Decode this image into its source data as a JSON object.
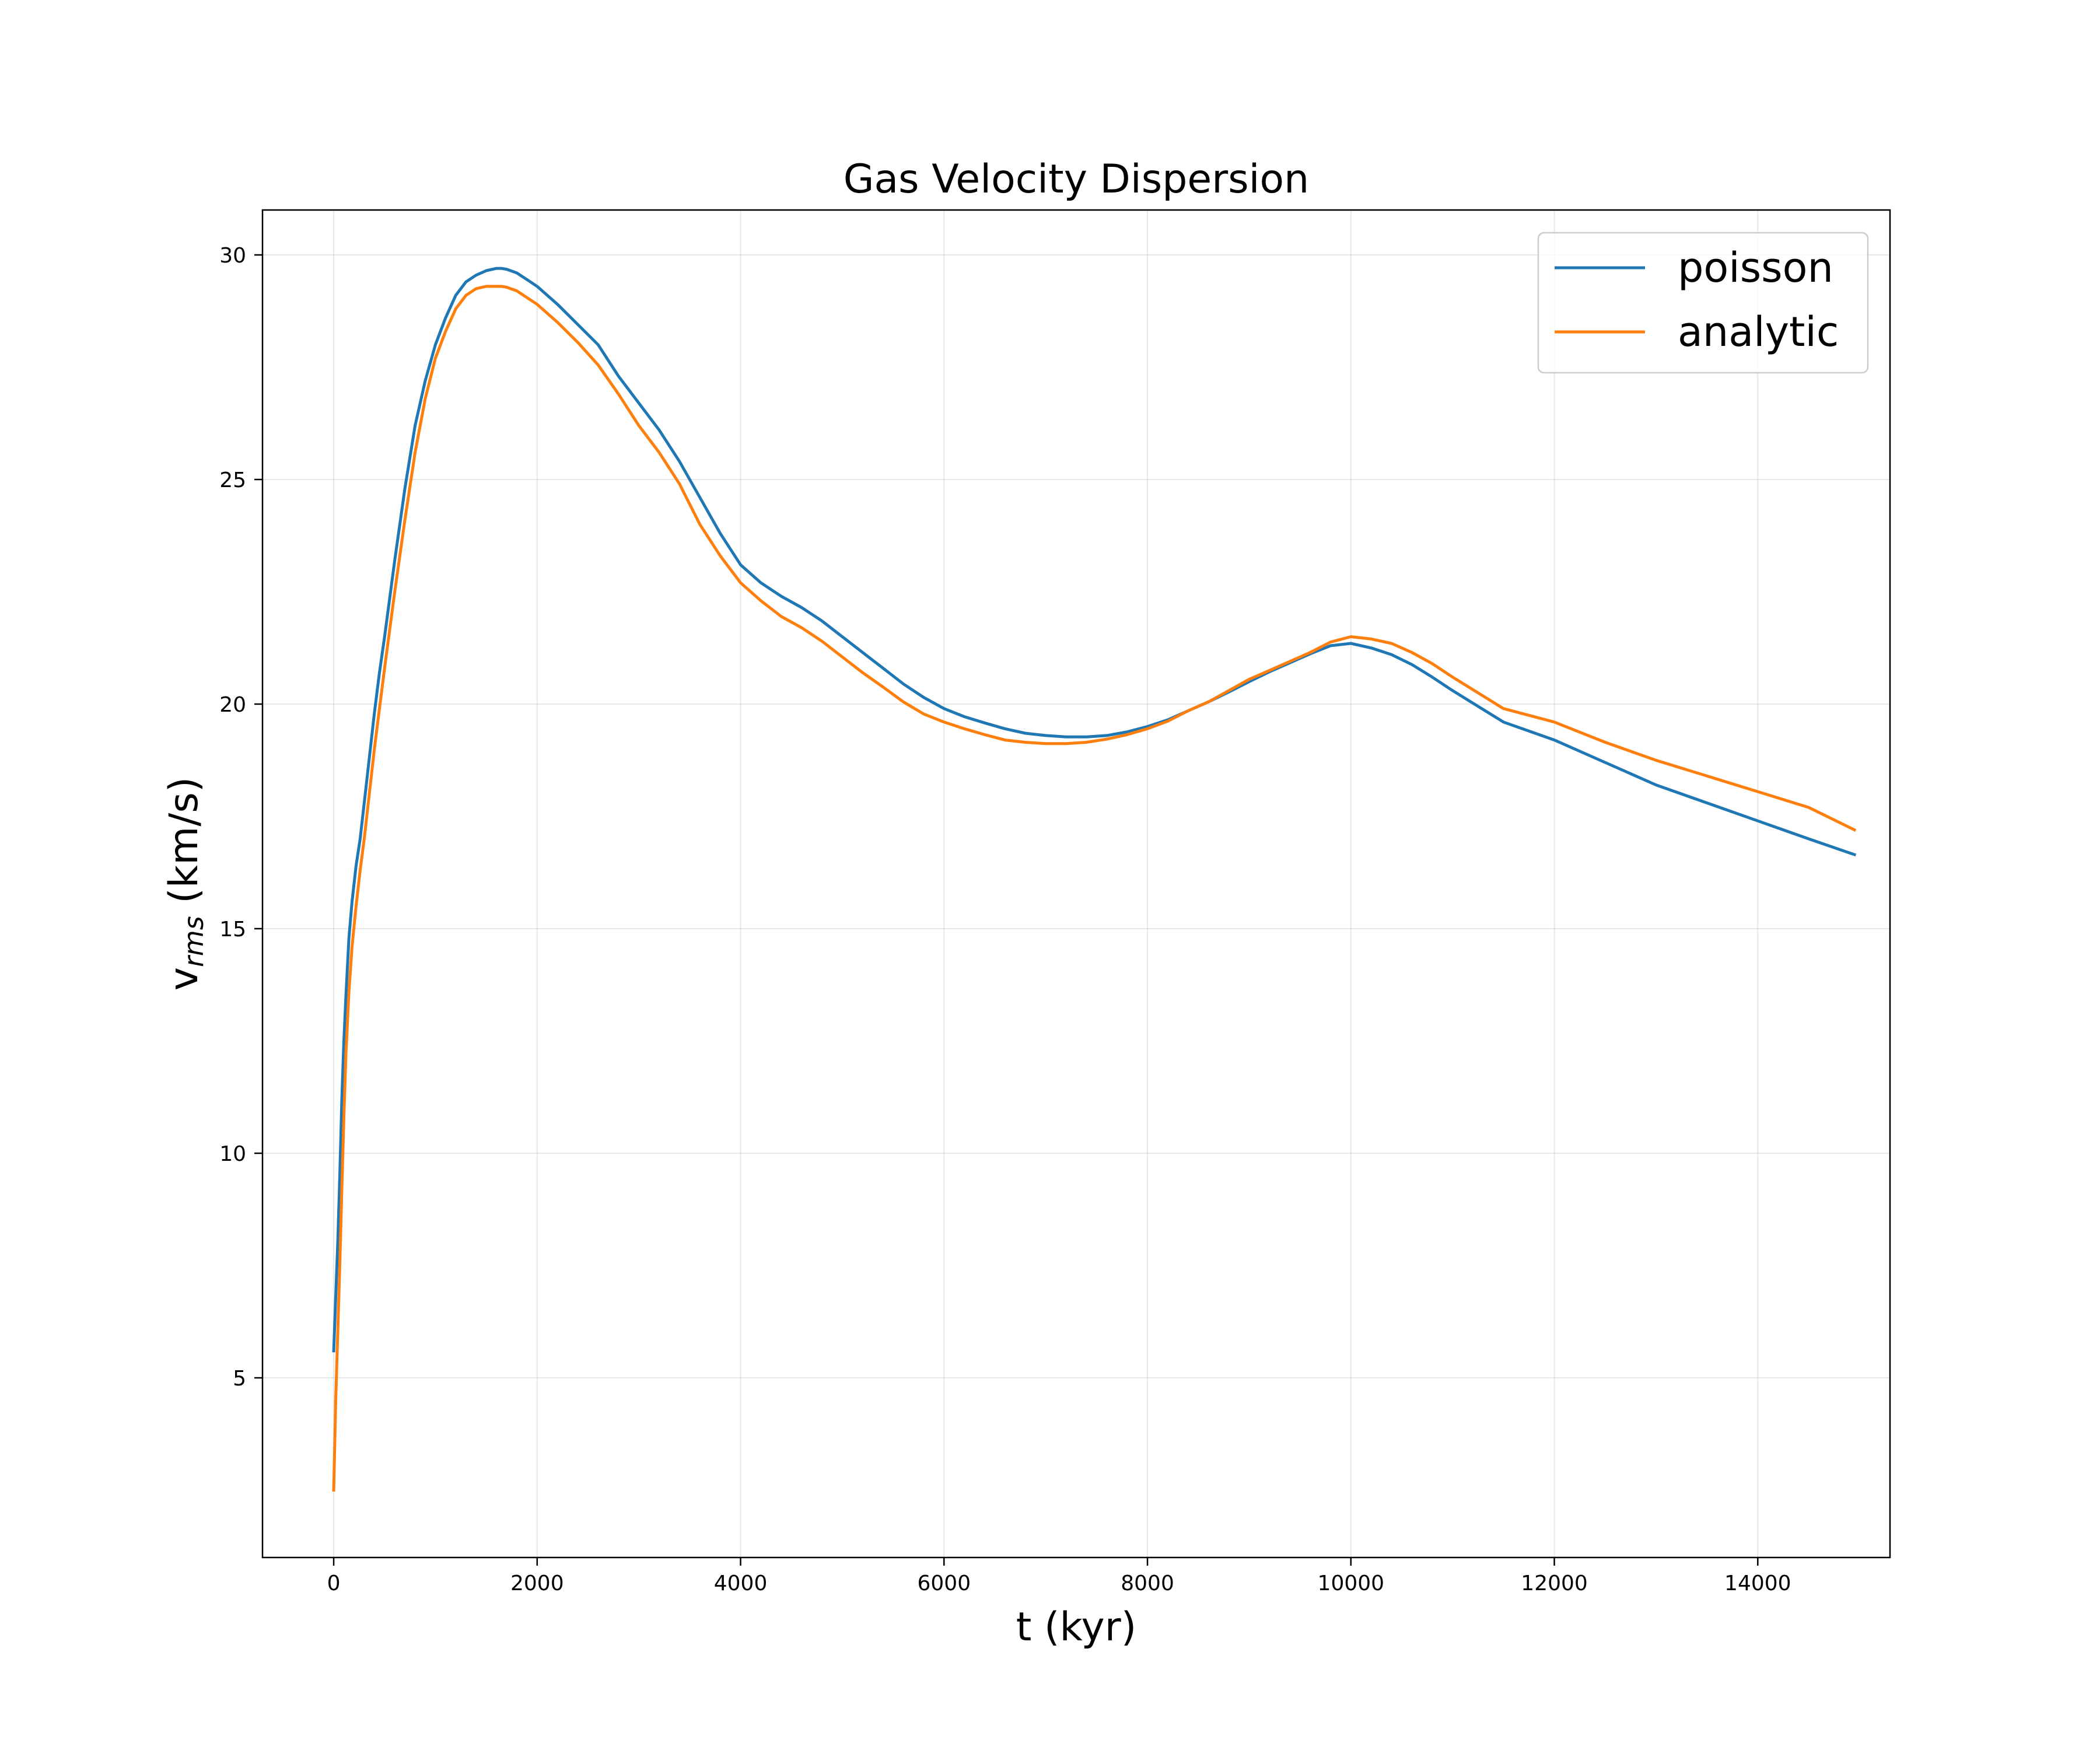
{
  "chart_data": {
    "type": "line",
    "title": "Gas Velocity Dispersion",
    "xlabel": "t (kyr)",
    "ylabel": {
      "base": "v",
      "subscript": "rms",
      "rest": " (km/s)"
    },
    "xlim": [
      -700,
      15300
    ],
    "ylim": [
      1.0,
      31.0
    ],
    "xticks": [
      0,
      2000,
      4000,
      6000,
      8000,
      10000,
      12000,
      14000
    ],
    "xtick_labels": [
      "0",
      "2000",
      "4000",
      "6000",
      "8000",
      "10000",
      "12000",
      "14000"
    ],
    "yticks": [
      5,
      10,
      15,
      20,
      25,
      30
    ],
    "ytick_labels": [
      "5",
      "10",
      "15",
      "20",
      "25",
      "30"
    ],
    "grid": true,
    "legend_position": "top-right",
    "series": [
      {
        "name": "poisson",
        "color": "#1f77b4",
        "x": [
          0,
          20,
          40,
          60,
          80,
          100,
          120,
          150,
          180,
          220,
          260,
          300,
          350,
          400,
          450,
          500,
          600,
          700,
          800,
          900,
          1000,
          1100,
          1200,
          1300,
          1400,
          1500,
          1600,
          1650,
          1700,
          1800,
          1900,
          2000,
          2200,
          2400,
          2600,
          2800,
          3000,
          3200,
          3400,
          3600,
          3800,
          4000,
          4200,
          4400,
          4600,
          4800,
          5000,
          5200,
          5400,
          5600,
          5800,
          6000,
          6200,
          6400,
          6600,
          6800,
          7000,
          7200,
          7400,
          7600,
          7800,
          8000,
          8200,
          8400,
          8600,
          8800,
          9000,
          9200,
          9400,
          9600,
          9800,
          10000,
          10200,
          10400,
          10600,
          10800,
          11000,
          11500,
          12000,
          12500,
          13000,
          13500,
          14000,
          14500,
          14950
        ],
        "y": [
          5.6,
          6.8,
          8.0,
          9.5,
          11.2,
          12.5,
          13.5,
          14.8,
          15.6,
          16.4,
          17.0,
          17.8,
          18.8,
          19.8,
          20.7,
          21.5,
          23.2,
          24.8,
          26.2,
          27.2,
          28.0,
          28.6,
          29.1,
          29.4,
          29.55,
          29.65,
          29.7,
          29.7,
          29.68,
          29.6,
          29.45,
          29.3,
          28.9,
          28.45,
          28.0,
          27.3,
          26.7,
          26.1,
          25.4,
          24.6,
          23.8,
          23.1,
          22.7,
          22.4,
          22.15,
          21.85,
          21.5,
          21.15,
          20.8,
          20.45,
          20.15,
          19.9,
          19.72,
          19.58,
          19.45,
          19.35,
          19.3,
          19.27,
          19.27,
          19.3,
          19.38,
          19.5,
          19.65,
          19.85,
          20.05,
          20.27,
          20.5,
          20.72,
          20.92,
          21.12,
          21.3,
          21.35,
          21.25,
          21.1,
          20.88,
          20.6,
          20.3,
          19.6,
          19.2,
          18.7,
          18.2,
          17.8,
          17.4,
          17.0,
          16.65
        ]
      },
      {
        "name": "analytic",
        "color": "#ff7f0e",
        "x": [
          0,
          20,
          40,
          60,
          80,
          100,
          120,
          150,
          180,
          220,
          260,
          300,
          350,
          400,
          450,
          500,
          600,
          700,
          800,
          900,
          1000,
          1100,
          1200,
          1300,
          1400,
          1500,
          1600,
          1650,
          1700,
          1800,
          1900,
          2000,
          2200,
          2400,
          2600,
          2800,
          3000,
          3200,
          3400,
          3600,
          3800,
          4000,
          4200,
          4400,
          4600,
          4800,
          5000,
          5200,
          5400,
          5600,
          5800,
          6000,
          6200,
          6400,
          6600,
          6800,
          7000,
          7200,
          7400,
          7600,
          7800,
          8000,
          8200,
          8400,
          8600,
          8800,
          9000,
          9200,
          9400,
          9600,
          9800,
          10000,
          10200,
          10400,
          10600,
          10800,
          11000,
          11500,
          12000,
          12500,
          13000,
          13500,
          14000,
          14500,
          14950
        ],
        "y": [
          2.5,
          4.5,
          6.0,
          7.5,
          9.2,
          10.8,
          12.2,
          13.6,
          14.6,
          15.5,
          16.3,
          17.0,
          18.0,
          19.0,
          19.9,
          20.8,
          22.5,
          24.1,
          25.6,
          26.8,
          27.7,
          28.3,
          28.8,
          29.1,
          29.25,
          29.3,
          29.3,
          29.3,
          29.28,
          29.2,
          29.05,
          28.9,
          28.5,
          28.05,
          27.55,
          26.9,
          26.2,
          25.6,
          24.9,
          24.0,
          23.3,
          22.7,
          22.3,
          21.95,
          21.7,
          21.4,
          21.05,
          20.7,
          20.38,
          20.05,
          19.78,
          19.6,
          19.45,
          19.32,
          19.2,
          19.15,
          19.12,
          19.12,
          19.15,
          19.22,
          19.32,
          19.45,
          19.62,
          19.85,
          20.05,
          20.3,
          20.55,
          20.75,
          20.95,
          21.15,
          21.38,
          21.5,
          21.45,
          21.35,
          21.15,
          20.9,
          20.6,
          19.9,
          19.6,
          19.15,
          18.75,
          18.4,
          18.05,
          17.7,
          17.2
        ]
      }
    ]
  }
}
